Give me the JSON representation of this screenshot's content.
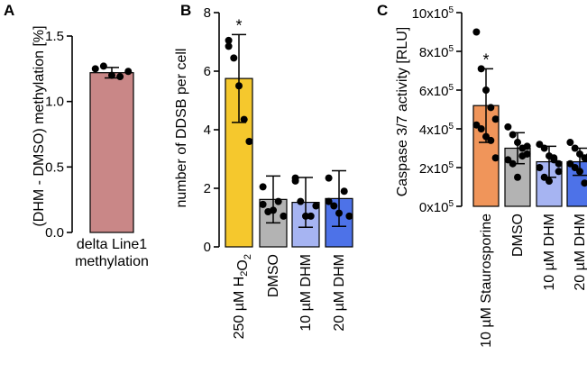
{
  "figure": {
    "panels": [
      {
        "letter": "A"
      },
      {
        "letter": "B"
      },
      {
        "letter": "C"
      }
    ]
  },
  "chart_data": [
    {
      "type": "bar",
      "panel": "A",
      "ylabel": "(DHM - DMSO) methylation [%]",
      "ylim": [
        0,
        1.5
      ],
      "yticks": [
        "0.0",
        "0.5",
        "1.0",
        "1.5"
      ],
      "ytick_values": [
        0,
        0.5,
        1.0,
        1.5
      ],
      "categories": [
        "delta Line1 methylation"
      ],
      "category_lines": [
        [
          "delta Line1",
          "methylation"
        ]
      ],
      "values": [
        1.22
      ],
      "errors": [
        0.04
      ],
      "colors": [
        "#c98787"
      ],
      "points": [
        [
          1.25,
          1.27,
          1.2,
          1.19,
          1.23
        ]
      ],
      "significance": [
        ""
      ]
    },
    {
      "type": "bar",
      "panel": "B",
      "ylabel": "number of DDSB per cell",
      "ylim": [
        0,
        8
      ],
      "yticks": [
        "0",
        "2",
        "4",
        "6",
        "8"
      ],
      "ytick_values": [
        0,
        2,
        4,
        6,
        8
      ],
      "categories": [
        "250 µM H2O2",
        "DMSO",
        "10 µM DHM",
        "20 µM DHM"
      ],
      "category_parts": [
        [
          {
            "t": "250 µM H"
          },
          {
            "t": "2",
            "sub": true
          },
          {
            "t": "O"
          },
          {
            "t": "2",
            "sub": true
          }
        ],
        [
          {
            "t": "DMSO"
          }
        ],
        [
          {
            "t": "10 µM DHM"
          }
        ],
        [
          {
            "t": "20 µM DHM"
          }
        ]
      ],
      "values": [
        5.75,
        1.62,
        1.52,
        1.65
      ],
      "errors": [
        1.5,
        0.8,
        0.85,
        0.95
      ],
      "colors": [
        "#f5c82d",
        "#b3b3b3",
        "#a6b4f2",
        "#4d72e8"
      ],
      "points": [
        [
          7.05,
          6.45,
          5.5,
          4.35,
          3.6,
          6.85
        ],
        [
          2.05,
          1.2,
          1.25,
          1.55,
          1.05,
          1.45
        ],
        [
          2.35,
          1.55,
          1.05,
          1.05,
          1.4,
          2.25
        ],
        [
          2.35,
          1.4,
          1.15,
          1.9,
          1.05,
          1.55
        ]
      ],
      "significance": [
        "*",
        "",
        "",
        ""
      ]
    },
    {
      "type": "bar",
      "panel": "C",
      "ylabel": "Caspase 3/7 activity [RLU]",
      "ylim": [
        0,
        1000000
      ],
      "yticks": [
        "0x10",
        "2x10",
        "4x10",
        "6x10",
        "8x10",
        "10x10"
      ],
      "ytick_exp": "5",
      "ytick_values": [
        0,
        200000,
        400000,
        600000,
        800000,
        1000000
      ],
      "categories": [
        "10 µM Staurosporine",
        "DMSO",
        "10 µM DHM",
        "20 µM DHM"
      ],
      "values": [
        520000,
        300000,
        230000,
        230000
      ],
      "errors": [
        190000,
        80000,
        80000,
        70000
      ],
      "colors": [
        "#f0955a",
        "#b3b3b3",
        "#a6b4f2",
        "#4d72e8"
      ],
      "points": [
        [
          900000,
          710000,
          600000,
          510000,
          450000,
          420000,
          400000,
          360000,
          340000,
          250000
        ],
        [
          410000,
          370000,
          330000,
          300000,
          270000,
          240000,
          220000,
          150000,
          260000,
          310000
        ],
        [
          320000,
          300000,
          260000,
          240000,
          220000,
          200000,
          150000,
          130000,
          250000,
          180000
        ],
        [
          330000,
          300000,
          270000,
          250000,
          240000,
          220000,
          200000,
          180000,
          120000,
          260000
        ]
      ],
      "significance": [
        "*",
        "",
        "",
        ""
      ]
    }
  ]
}
